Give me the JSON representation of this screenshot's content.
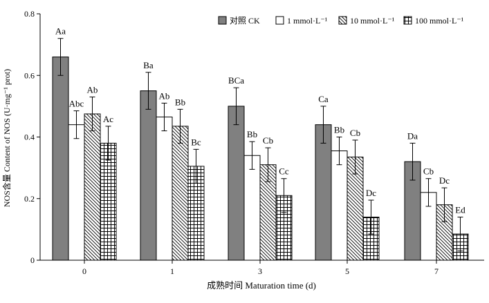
{
  "chart_data": {
    "type": "bar",
    "title": "",
    "xlabel": "成熟时间 Maturation time (d)",
    "ylabel": "NOS含量 Content of NOS (U·mg⁻¹ prot)",
    "ylim": [
      0,
      0.8
    ],
    "yticks": [
      "0",
      "0.2",
      "0.4",
      "0.6",
      "0.8"
    ],
    "categories": [
      "0",
      "1",
      "3",
      "5",
      "7"
    ],
    "grid": false,
    "legend_position": "top-right",
    "error_bars": true,
    "series": [
      {
        "name": "对照 CK",
        "fill": "#808080",
        "pattern": "solid",
        "values": [
          0.66,
          0.55,
          0.5,
          0.44,
          0.32
        ],
        "errors": [
          0.06,
          0.06,
          0.06,
          0.06,
          0.06
        ],
        "labels": [
          "Aa",
          "Ba",
          "BCa",
          "Ca",
          "Da"
        ]
      },
      {
        "name": "1 mmol·L⁻¹",
        "fill": "#ffffff",
        "pattern": "blank",
        "values": [
          0.44,
          0.465,
          0.34,
          0.355,
          0.22
        ],
        "errors": [
          0.045,
          0.045,
          0.045,
          0.045,
          0.045
        ],
        "labels": [
          "Abc",
          "Ab",
          "Bb",
          "Bb",
          "Cb"
        ]
      },
      {
        "name": "10 mmol·L⁻¹",
        "fill": "#ffffff",
        "pattern": "diagonal",
        "values": [
          0.475,
          0.435,
          0.31,
          0.335,
          0.18
        ],
        "errors": [
          0.055,
          0.055,
          0.055,
          0.055,
          0.055
        ],
        "labels": [
          "Ab",
          "Bb",
          "Cb",
          "Cb",
          "Dc"
        ]
      },
      {
        "name": "100 mmol·L⁻¹",
        "fill": "#ffffff",
        "pattern": "grid",
        "values": [
          0.38,
          0.305,
          0.21,
          0.14,
          0.085
        ],
        "errors": [
          0.055,
          0.055,
          0.055,
          0.055,
          0.055
        ],
        "labels": [
          "Ac",
          "Bc",
          "Cc",
          "Dc",
          "Ed"
        ]
      }
    ]
  }
}
